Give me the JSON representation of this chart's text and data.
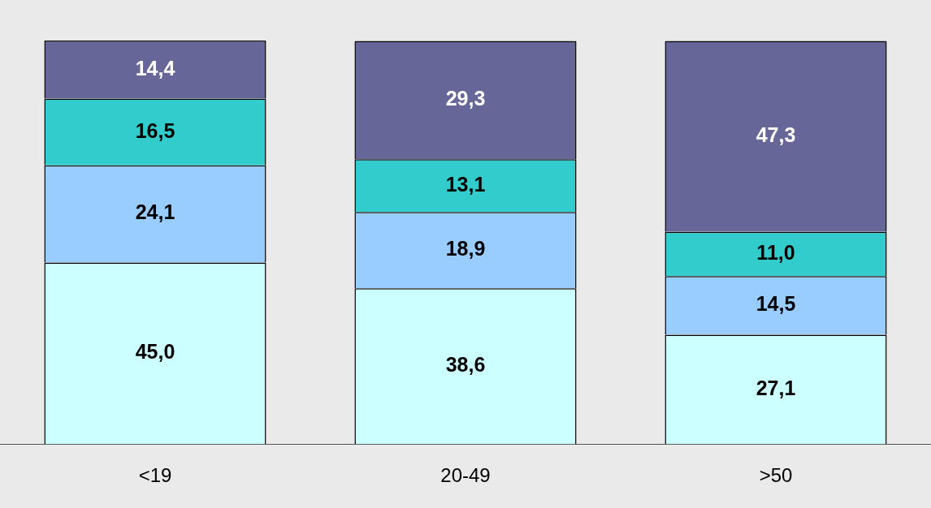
{
  "chart_data": {
    "type": "bar",
    "stacked": true,
    "categories": [
      "<19",
      "20-49",
      ">50"
    ],
    "series": [
      {
        "color": "#ccffff",
        "values": [
          45.0,
          38.6,
          27.1
        ],
        "value_labels": [
          "45,0",
          "38,6",
          "27,1"
        ]
      },
      {
        "color": "#99ccff",
        "values": [
          24.1,
          18.9,
          14.5
        ],
        "value_labels": [
          "24,1",
          "18,9",
          "14,5"
        ]
      },
      {
        "color": "#33cccc",
        "values": [
          16.5,
          13.1,
          11.0
        ],
        "value_labels": [
          "16,5",
          "13,1",
          "11,0"
        ]
      },
      {
        "color": "#666699",
        "values": [
          14.4,
          29.3,
          47.3
        ],
        "value_labels": [
          "14,4",
          "29,3",
          "47,3"
        ]
      }
    ],
    "tick_labels": "x",
    "grid": false,
    "legend": false
  }
}
